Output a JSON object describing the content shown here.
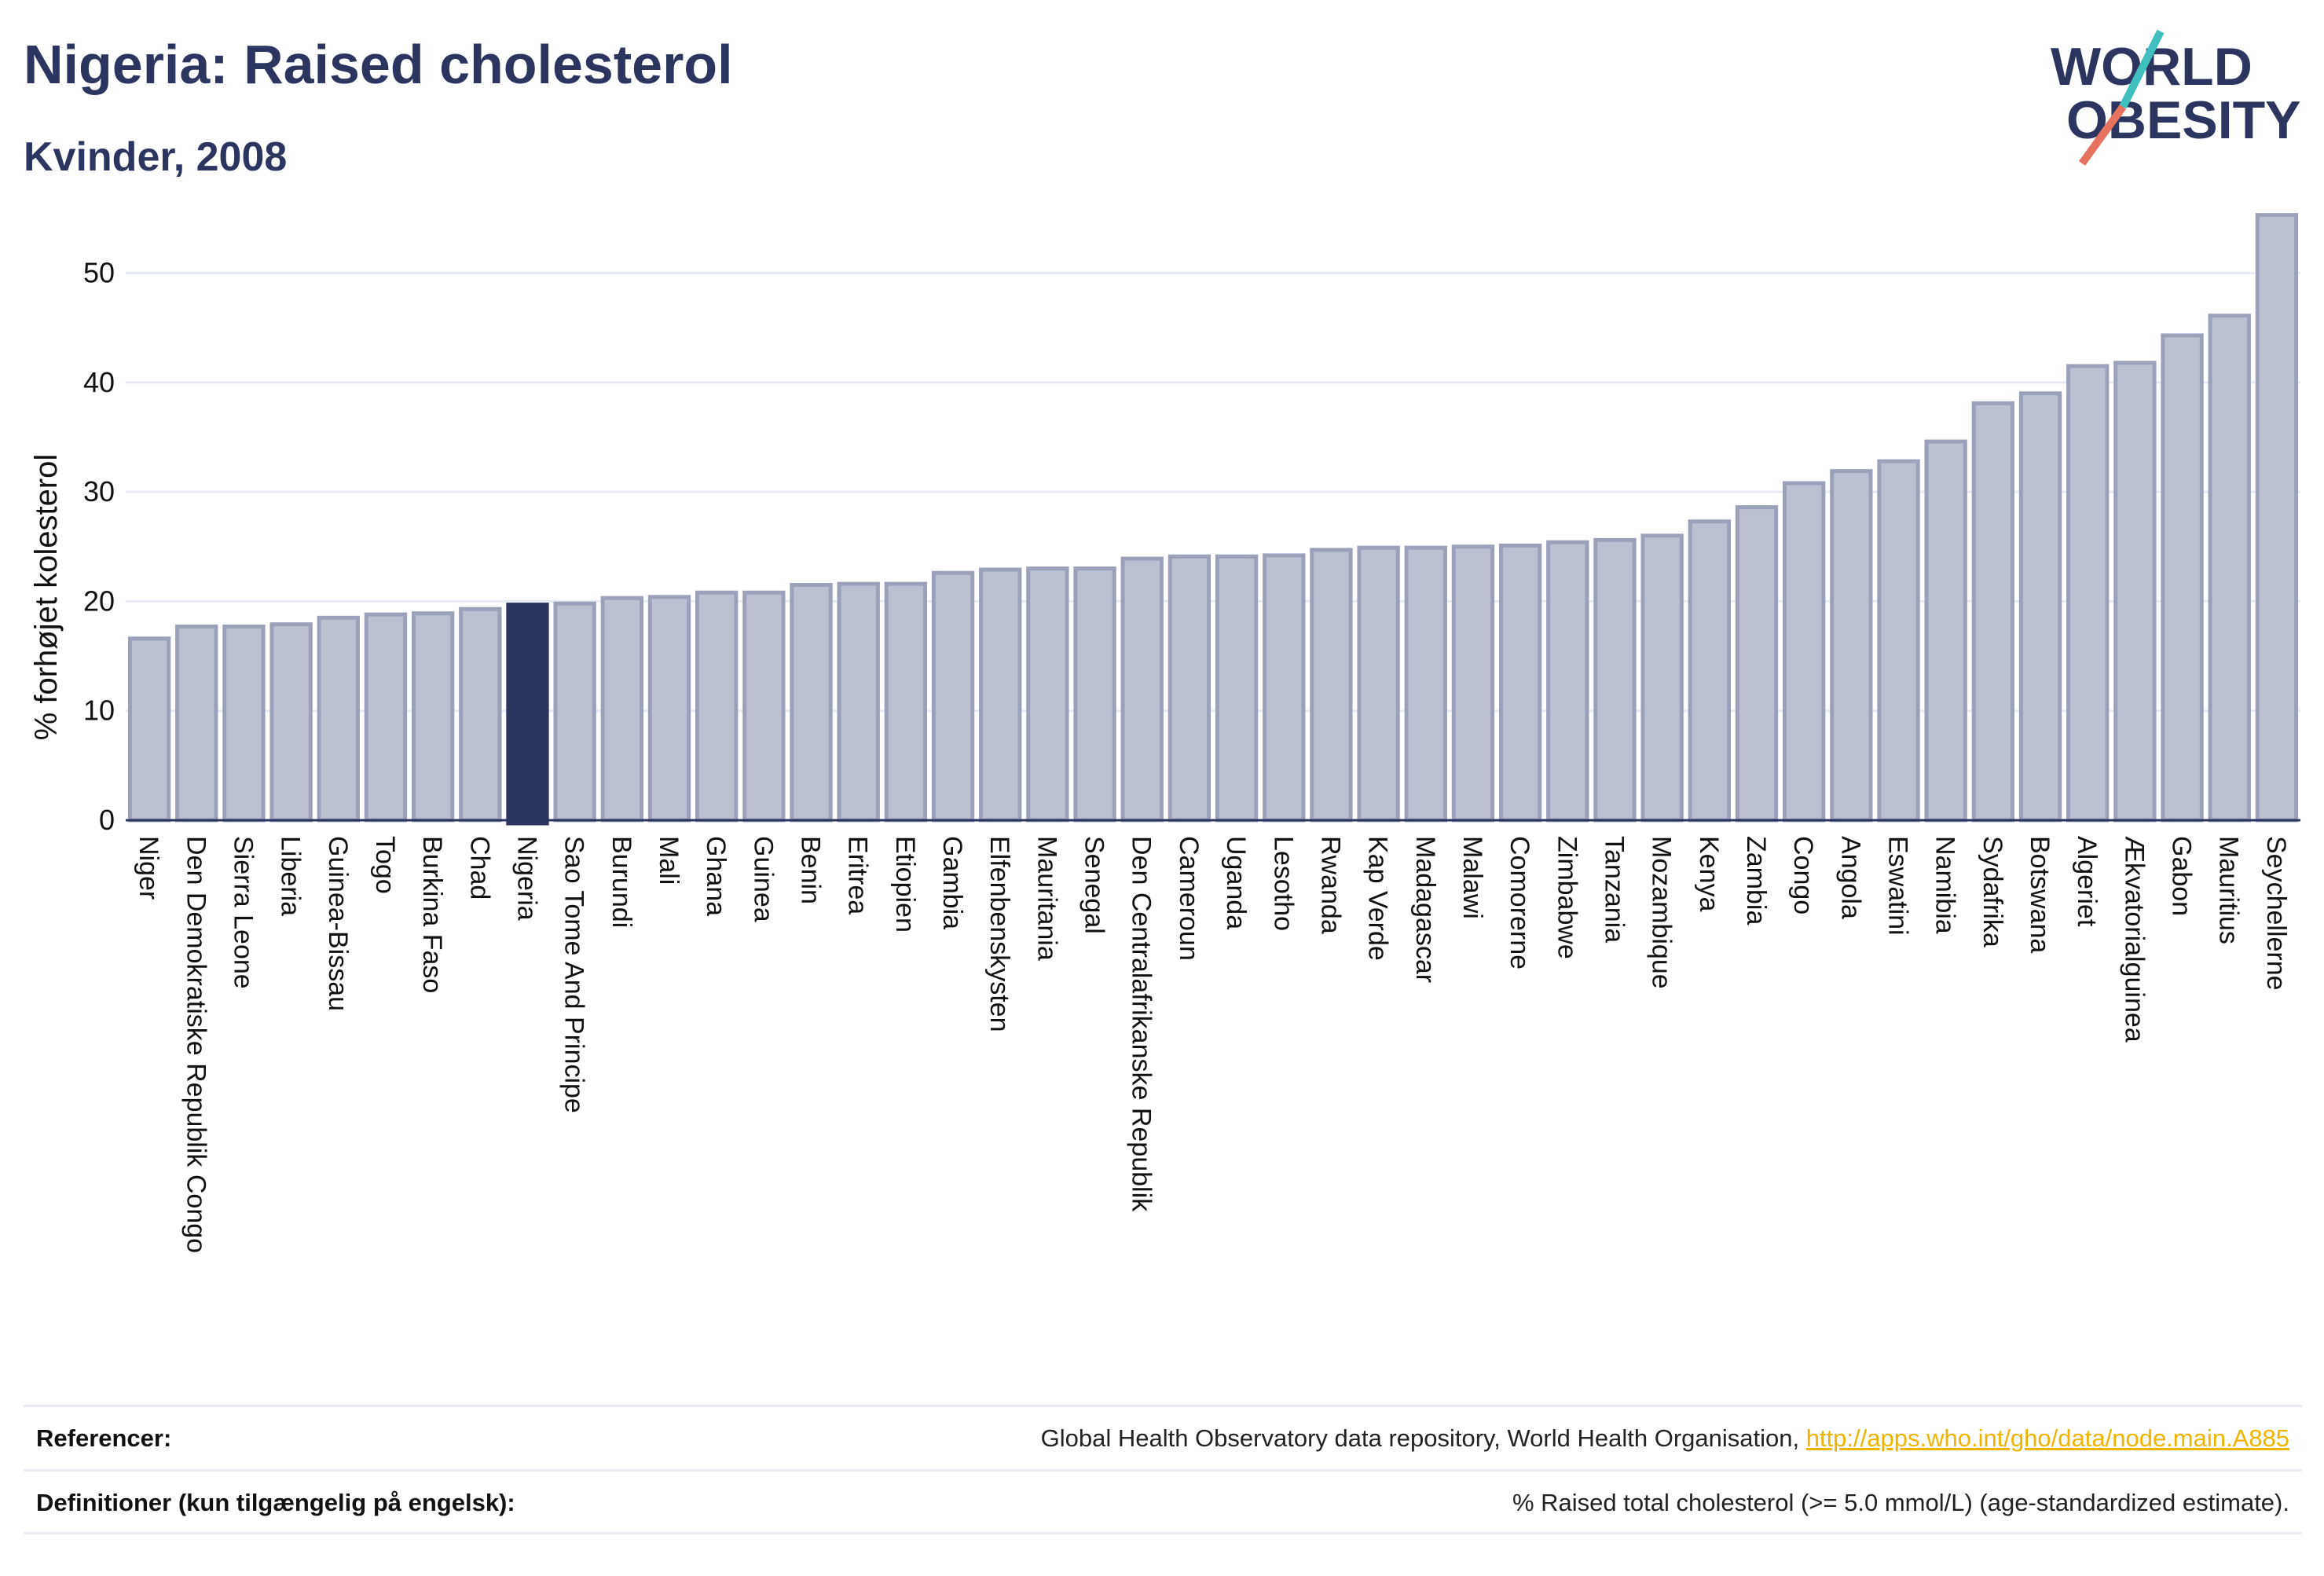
{
  "header": {
    "title": "Nigeria: Raised cholesterol",
    "subtitle": "Kvinder, 2008"
  },
  "logo": {
    "line1": "WORLD",
    "line2": "OBESITY",
    "colors": {
      "text": "#2b3560",
      "teal": "#3fbfbf",
      "coral": "#e5735e"
    }
  },
  "colors": {
    "bar": "#bcc1d1",
    "bar_stroke": "#9aa1b9",
    "highlight": "#2b3560",
    "grid": "#e8ebf3",
    "axis": "#2b3560"
  },
  "chart_data": {
    "type": "bar",
    "ylabel": "% forhøjet kolesterol",
    "ylim": [
      0,
      57
    ],
    "yticks": [
      0,
      10,
      20,
      30,
      40,
      50
    ],
    "grid": true,
    "highlight": "Nigeria",
    "categories": [
      "Niger",
      "Den Demokratiske Republik Congo",
      "Sierra Leone",
      "Liberia",
      "Guinea-Bissau",
      "Togo",
      "Burkina Faso",
      "Chad",
      "Nigeria",
      "Sao Tome And Principe",
      "Burundi",
      "Mali",
      "Ghana",
      "Guinea",
      "Benin",
      "Eritrea",
      "Etiopien",
      "Gambia",
      "Elfenbenskysten",
      "Mauritania",
      "Senegal",
      "Den Centralafrikanske Republik",
      "Cameroun",
      "Uganda",
      "Lesotho",
      "Rwanda",
      "Kap Verde",
      "Madagascar",
      "Malawi",
      "Comorerne",
      "Zimbabwe",
      "Tanzania",
      "Mozambique",
      "Kenya",
      "Zambia",
      "Congo",
      "Angola",
      "Eswatini",
      "Namibia",
      "Sydafrika",
      "Botswana",
      "Algeriet",
      "Ækvatorialguinea",
      "Gabon",
      "Mauritius",
      "Seychellerne"
    ],
    "values": [
      16.6,
      17.7,
      17.7,
      17.9,
      18.5,
      18.8,
      18.9,
      19.3,
      19.7,
      19.8,
      20.3,
      20.4,
      20.8,
      20.8,
      21.5,
      21.6,
      21.6,
      22.6,
      22.9,
      23.0,
      23.0,
      23.9,
      24.1,
      24.1,
      24.2,
      24.7,
      24.9,
      24.9,
      25.0,
      25.1,
      25.4,
      25.6,
      26.0,
      27.3,
      28.6,
      30.8,
      31.9,
      32.8,
      34.6,
      38.1,
      39.0,
      41.5,
      41.8,
      44.3,
      46.1,
      55.3
    ]
  },
  "footer": {
    "references_label": "Referencer:",
    "references_text": "Global Health Observatory data repository, World Health Organisation,",
    "references_link": "http://apps.who.int/gho/data/node.main.A885",
    "definitions_label": "Definitioner (kun tilgængelig på engelsk):",
    "definitions_text": "% Raised total cholesterol (>= 5.0 mmol/L) (age-standardized estimate)."
  }
}
